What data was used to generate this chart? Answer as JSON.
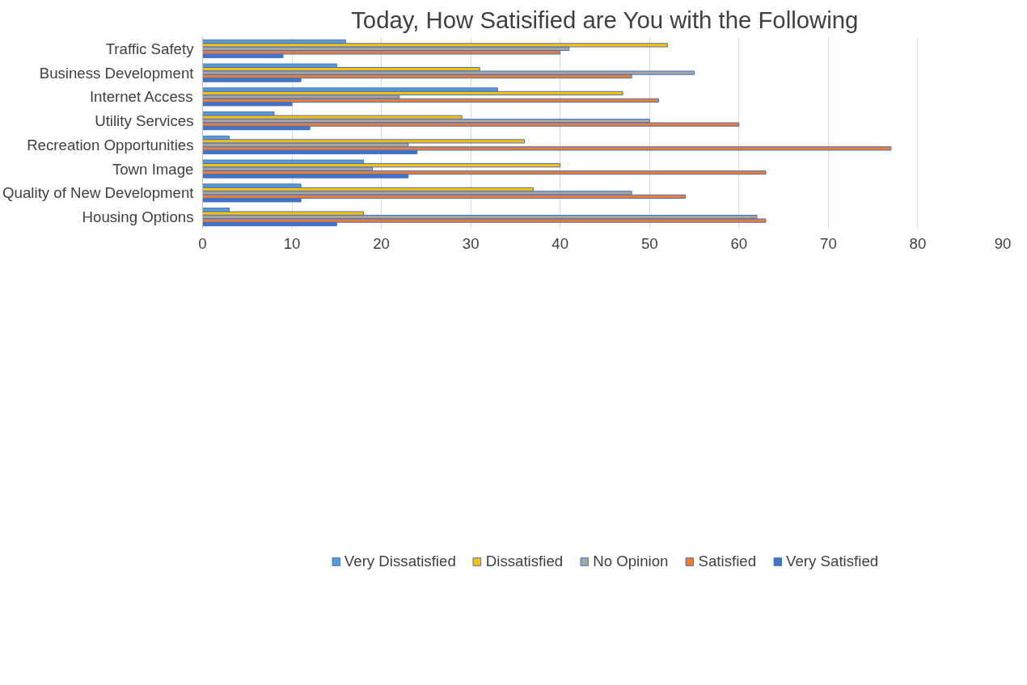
{
  "chart_data": {
    "type": "bar",
    "orientation": "horizontal",
    "title": "Today, How Satisified are You with the Following",
    "categories": [
      "Traffic Safety",
      "Business Development",
      "Internet Access",
      "Utility Services",
      "Recreation Opportunities",
      "Town Image",
      "Quality of New Development",
      "Housing Options"
    ],
    "series": [
      {
        "name": "Very Dissatisfied",
        "color": "#5b9bd5",
        "values": [
          16,
          15,
          33,
          8,
          3,
          18,
          11,
          3
        ]
      },
      {
        "name": "Dissatisfied",
        "color": "#ffc000",
        "values": [
          52,
          31,
          47,
          29,
          36,
          40,
          37,
          18
        ]
      },
      {
        "name": "No Opinion",
        "color": "#a5a5a5",
        "values": [
          41,
          55,
          22,
          50,
          23,
          19,
          48,
          62
        ]
      },
      {
        "name": "Satisfied",
        "color": "#ed7d31",
        "values": [
          40,
          48,
          51,
          60,
          77,
          63,
          54,
          63
        ]
      },
      {
        "name": "Very Satisfied",
        "color": "#4472c4",
        "values": [
          9,
          11,
          10,
          12,
          24,
          23,
          11,
          15
        ]
      }
    ],
    "xlim": [
      0,
      90
    ],
    "xticks": [
      0,
      10,
      20,
      30,
      40,
      50,
      60,
      70,
      80,
      90
    ],
    "grid": "x",
    "legend": "bottom"
  }
}
